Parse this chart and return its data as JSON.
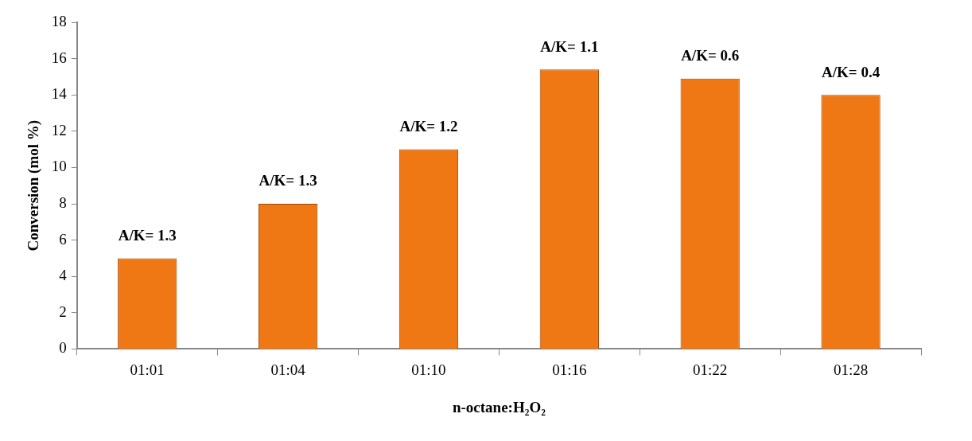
{
  "chart_data": {
    "type": "bar",
    "categories": [
      "01:01",
      "01:04",
      "01:10",
      "01:16",
      "01:22",
      "01:28"
    ],
    "values": [
      5,
      8,
      11,
      15.4,
      14.9,
      14
    ],
    "color": "#f07814",
    "xlabel": "n-octane:H₂O₂",
    "ylabel": "Conversion (mol %)",
    "ylim": [
      0,
      18
    ],
    "yticks": [
      0,
      2,
      4,
      6,
      8,
      10,
      12,
      14,
      16,
      18
    ],
    "grid": false,
    "annotations": [
      {
        "text": "A/K= 1.3",
        "x": "01:01",
        "y": 5
      },
      {
        "text": "A/K= 1.3",
        "x": "01:04",
        "y": 8
      },
      {
        "text": "A/K= 1.2",
        "x": "01:10",
        "y": 11
      },
      {
        "text": "A/K= 1.1",
        "x": "01:16",
        "y": 15.4
      },
      {
        "text": "A/K= 0.6",
        "x": "01:22",
        "y": 14.9
      },
      {
        "text": "A/K= 0.4",
        "x": "01:28",
        "y": 14
      }
    ]
  }
}
